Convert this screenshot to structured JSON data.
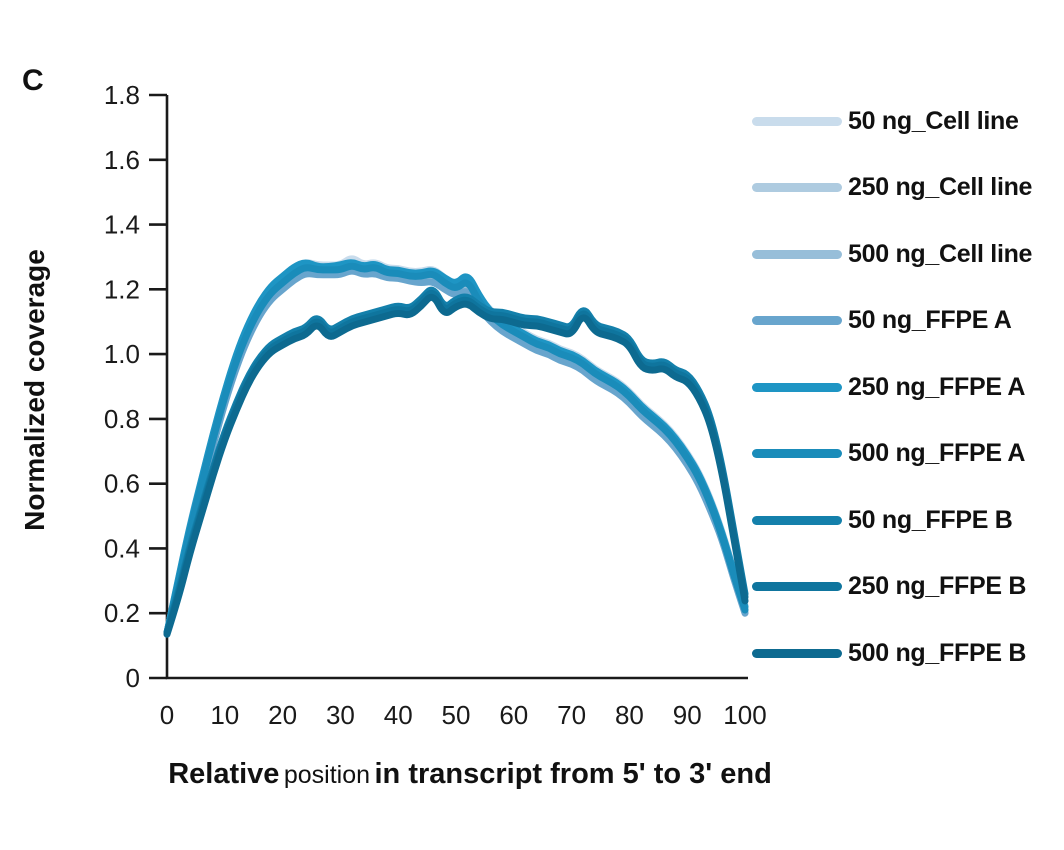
{
  "panel_label": "C",
  "chart_data": {
    "type": "line",
    "title": "",
    "ylabel": "Normalized coverage",
    "xlabel_parts": {
      "bold_start": "Relative",
      "regular": "position",
      "bold_end": "in transcript from 5' to 3' end"
    },
    "xlim": [
      0,
      100
    ],
    "ylim": [
      0,
      1.8
    ],
    "grid": false,
    "legend_position": "right",
    "axis_color": "#1a1a1a",
    "background_color": "#ffffff",
    "x_ticks": [
      0,
      10,
      20,
      30,
      40,
      50,
      60,
      70,
      80,
      90,
      100
    ],
    "y_ticks": [
      {
        "v": 1.8,
        "label": "1.8"
      },
      {
        "v": 1.6,
        "label": "1.6"
      },
      {
        "v": 1.4,
        "label": "1.4"
      },
      {
        "v": 1.2,
        "label": "1.2"
      },
      {
        "v": 1.0,
        "label": "1.0"
      },
      {
        "v": 0.8,
        "label": "0.8"
      },
      {
        "v": 0.6,
        "label": "0.6"
      },
      {
        "v": 0.4,
        "label": "0.4"
      },
      {
        "v": 0.2,
        "label": "0.2"
      },
      {
        "v": 0.0,
        "label": "0"
      }
    ],
    "x": [
      0,
      2,
      4,
      6,
      8,
      10,
      12,
      14,
      16,
      18,
      20,
      22,
      24,
      26,
      28,
      30,
      32,
      34,
      36,
      38,
      40,
      42,
      44,
      46,
      48,
      50,
      52,
      54,
      56,
      58,
      60,
      62,
      64,
      66,
      68,
      70,
      72,
      74,
      76,
      78,
      80,
      82,
      84,
      86,
      88,
      90,
      92,
      94,
      96,
      98,
      100
    ],
    "series": [
      {
        "name": "50 ng_Cell line",
        "color": "#c9dcec",
        "values": [
          0.14,
          0.3,
          0.475,
          0.615,
          0.755,
          0.885,
          0.995,
          1.085,
          1.155,
          1.205,
          1.235,
          1.265,
          1.285,
          1.275,
          1.275,
          1.275,
          1.3,
          1.275,
          1.285,
          1.265,
          1.265,
          1.255,
          1.255,
          1.265,
          1.235,
          1.215,
          1.245,
          1.175,
          1.135,
          1.105,
          1.085,
          1.065,
          1.045,
          1.035,
          1.015,
          1.005,
          0.985,
          0.955,
          0.935,
          0.915,
          0.885,
          0.845,
          0.815,
          0.785,
          0.745,
          0.695,
          0.635,
          0.555,
          0.455,
          0.335,
          0.225
        ]
      },
      {
        "name": "250 ng_Cell line",
        "color": "#aecbe0",
        "values": [
          0.14,
          0.305,
          0.465,
          0.605,
          0.745,
          0.875,
          0.985,
          1.075,
          1.145,
          1.195,
          1.225,
          1.255,
          1.275,
          1.265,
          1.265,
          1.265,
          1.285,
          1.265,
          1.275,
          1.255,
          1.255,
          1.245,
          1.245,
          1.255,
          1.225,
          1.205,
          1.235,
          1.165,
          1.125,
          1.095,
          1.075,
          1.055,
          1.035,
          1.025,
          1.005,
          0.995,
          0.975,
          0.945,
          0.925,
          0.905,
          0.875,
          0.835,
          0.805,
          0.775,
          0.735,
          0.685,
          0.625,
          0.545,
          0.445,
          0.325,
          0.215
        ]
      },
      {
        "name": "500 ng_Cell line",
        "color": "#97bed9",
        "values": [
          0.14,
          0.292,
          0.452,
          0.592,
          0.732,
          0.862,
          0.972,
          1.062,
          1.132,
          1.182,
          1.212,
          1.242,
          1.262,
          1.252,
          1.252,
          1.252,
          1.272,
          1.252,
          1.262,
          1.242,
          1.242,
          1.232,
          1.232,
          1.242,
          1.212,
          1.192,
          1.222,
          1.152,
          1.112,
          1.082,
          1.062,
          1.042,
          1.022,
          1.012,
          0.992,
          0.982,
          0.962,
          0.932,
          0.912,
          0.892,
          0.862,
          0.822,
          0.792,
          0.762,
          0.722,
          0.672,
          0.612,
          0.532,
          0.432,
          0.312,
          0.202
        ]
      },
      {
        "name": "50 ng_FFPE A",
        "color": "#68a5cd",
        "values": [
          0.14,
          0.285,
          0.44,
          0.58,
          0.72,
          0.85,
          0.96,
          1.05,
          1.12,
          1.17,
          1.2,
          1.23,
          1.25,
          1.245,
          1.245,
          1.245,
          1.26,
          1.245,
          1.25,
          1.235,
          1.235,
          1.225,
          1.22,
          1.225,
          1.2,
          1.18,
          1.2,
          1.14,
          1.1,
          1.07,
          1.05,
          1.03,
          1.01,
          1.0,
          0.98,
          0.97,
          0.95,
          0.92,
          0.9,
          0.88,
          0.85,
          0.81,
          0.78,
          0.75,
          0.71,
          0.66,
          0.6,
          0.52,
          0.43,
          0.31,
          0.2
        ]
      },
      {
        "name": "250 ng_FFPE A",
        "color": "#1e95c4",
        "values": [
          0.14,
          0.31,
          0.47,
          0.615,
          0.755,
          0.885,
          1.0,
          1.09,
          1.16,
          1.21,
          1.24,
          1.27,
          1.285,
          1.27,
          1.27,
          1.275,
          1.285,
          1.27,
          1.28,
          1.26,
          1.26,
          1.25,
          1.25,
          1.26,
          1.235,
          1.215,
          1.25,
          1.18,
          1.13,
          1.1,
          1.08,
          1.06,
          1.04,
          1.03,
          1.01,
          1.0,
          0.98,
          0.95,
          0.93,
          0.91,
          0.88,
          0.84,
          0.81,
          0.78,
          0.74,
          0.69,
          0.63,
          0.55,
          0.45,
          0.33,
          0.22
        ]
      },
      {
        "name": "500 ng_FFPE A",
        "color": "#1a8cba",
        "values": [
          0.14,
          0.295,
          0.455,
          0.6,
          0.74,
          0.87,
          0.98,
          1.07,
          1.14,
          1.19,
          1.22,
          1.25,
          1.27,
          1.26,
          1.26,
          1.26,
          1.275,
          1.26,
          1.27,
          1.25,
          1.25,
          1.24,
          1.24,
          1.25,
          1.22,
          1.2,
          1.23,
          1.16,
          1.12,
          1.09,
          1.07,
          1.05,
          1.03,
          1.02,
          1.0,
          0.99,
          0.97,
          0.94,
          0.92,
          0.9,
          0.87,
          0.83,
          0.8,
          0.77,
          0.73,
          0.68,
          0.62,
          0.54,
          0.44,
          0.32,
          0.21
        ]
      },
      {
        "name": "50 ng_FFPE B",
        "color": "#1480ab",
        "values": [
          0.14,
          0.27,
          0.41,
          0.53,
          0.65,
          0.76,
          0.85,
          0.93,
          0.99,
          1.03,
          1.05,
          1.07,
          1.08,
          1.12,
          1.07,
          1.09,
          1.11,
          1.12,
          1.13,
          1.14,
          1.15,
          1.14,
          1.17,
          1.21,
          1.14,
          1.17,
          1.18,
          1.15,
          1.13,
          1.13,
          1.12,
          1.11,
          1.11,
          1.1,
          1.09,
          1.08,
          1.15,
          1.09,
          1.08,
          1.07,
          1.05,
          0.98,
          0.97,
          0.98,
          0.95,
          0.94,
          0.89,
          0.81,
          0.66,
          0.46,
          0.26
        ]
      },
      {
        "name": "250 ng_FFPE B",
        "color": "#0f759e",
        "values": [
          0.14,
          0.26,
          0.4,
          0.52,
          0.64,
          0.75,
          0.84,
          0.92,
          0.98,
          1.02,
          1.04,
          1.06,
          1.07,
          1.11,
          1.06,
          1.08,
          1.1,
          1.11,
          1.12,
          1.13,
          1.14,
          1.13,
          1.16,
          1.2,
          1.13,
          1.16,
          1.17,
          1.14,
          1.12,
          1.12,
          1.11,
          1.1,
          1.1,
          1.09,
          1.08,
          1.07,
          1.14,
          1.08,
          1.07,
          1.06,
          1.04,
          0.97,
          0.96,
          0.97,
          0.94,
          0.93,
          0.88,
          0.8,
          0.65,
          0.45,
          0.25
        ]
      },
      {
        "name": "500 ng_FFPE B",
        "color": "#0d6a90",
        "values": [
          0.135,
          0.248,
          0.388,
          0.508,
          0.628,
          0.738,
          0.828,
          0.908,
          0.968,
          1.008,
          1.028,
          1.048,
          1.058,
          1.098,
          1.048,
          1.068,
          1.088,
          1.098,
          1.108,
          1.118,
          1.128,
          1.118,
          1.148,
          1.188,
          1.118,
          1.148,
          1.158,
          1.128,
          1.108,
          1.108,
          1.098,
          1.088,
          1.088,
          1.078,
          1.068,
          1.058,
          1.128,
          1.068,
          1.058,
          1.048,
          1.028,
          0.958,
          0.948,
          0.958,
          0.928,
          0.918,
          0.868,
          0.788,
          0.638,
          0.438,
          0.238
        ]
      }
    ]
  }
}
